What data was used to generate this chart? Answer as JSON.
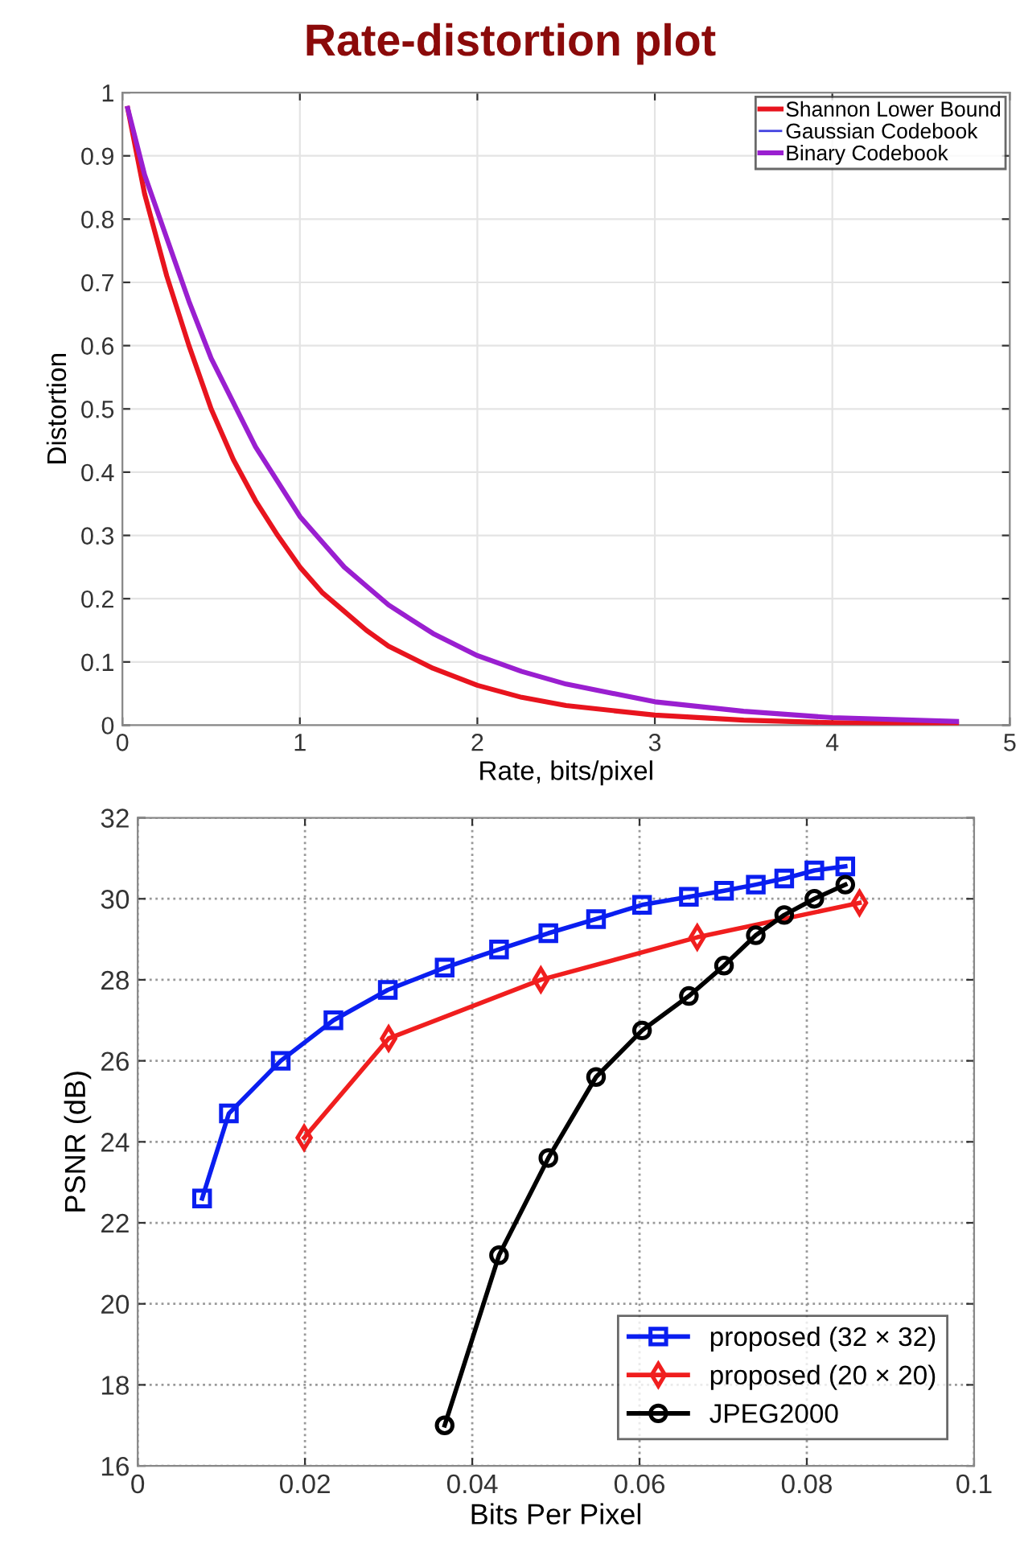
{
  "chart_data": [
    {
      "type": "line",
      "title": "Rate-distortion plot",
      "xlabel": "Rate, bits/pixel",
      "ylabel": "Distortion",
      "xlim": [
        0,
        5
      ],
      "xticks": [
        0,
        1,
        2,
        3,
        4,
        5
      ],
      "ylim": [
        0,
        1
      ],
      "yticks": [
        0,
        0.1,
        0.2,
        0.3,
        0.4,
        0.5,
        0.6,
        0.7,
        0.8,
        0.9,
        1
      ],
      "grid": true,
      "legend": "top right",
      "marker": "none",
      "line_style": "solid",
      "series": [
        {
          "name": "Shannon Lower Bound",
          "color": "#e8141e",
          "x": [
            0.03,
            0.125,
            0.25,
            0.375,
            0.5,
            0.625,
            0.75,
            0.875,
            1,
            1.125,
            1.25,
            1.375,
            1.5,
            1.75,
            2,
            2.25,
            2.5,
            3,
            3.5,
            4,
            4.7
          ],
          "values": [
            0.975,
            0.84,
            0.71,
            0.6,
            0.5,
            0.42,
            0.355,
            0.3,
            0.25,
            0.21,
            0.18,
            0.15,
            0.125,
            0.09,
            0.063,
            0.044,
            0.031,
            0.016,
            0.008,
            0.004,
            0.002
          ]
        },
        {
          "name": "Gaussian Codebook",
          "color": "#4040e0"
        },
        {
          "name": "Binary Codebook",
          "color": "#9a1fd0",
          "x": [
            0.03,
            0.125,
            0.25,
            0.375,
            0.5,
            0.625,
            0.75,
            0.875,
            1,
            1.125,
            1.25,
            1.375,
            1.5,
            1.75,
            2,
            2.25,
            2.5,
            3,
            3.5,
            4,
            4.7
          ],
          "values": [
            0.975,
            0.87,
            0.77,
            0.67,
            0.58,
            0.51,
            0.44,
            0.385,
            0.33,
            0.29,
            0.25,
            0.22,
            0.19,
            0.145,
            0.11,
            0.085,
            0.065,
            0.037,
            0.022,
            0.012,
            0.006
          ]
        }
      ]
    },
    {
      "type": "line",
      "xlabel": "Bits Per Pixel",
      "ylabel": "PSNR (dB)",
      "xlim": [
        0,
        0.1
      ],
      "xticks": [
        0,
        0.02,
        0.04,
        0.06,
        0.08,
        0.1
      ],
      "ylim": [
        16,
        32
      ],
      "yticks": [
        16,
        18,
        20,
        22,
        24,
        26,
        28,
        30,
        32
      ],
      "grid": true,
      "legend": "bottom right",
      "line_style": "solid",
      "series": [
        {
          "name": "proposed (32 × 32)",
          "color": "#0a1ef0",
          "marker": "square",
          "x": [
            0.0077,
            0.0109,
            0.0171,
            0.0234,
            0.0299,
            0.0367,
            0.0432,
            0.0491,
            0.0548,
            0.0603,
            0.0659,
            0.0701,
            0.0739,
            0.0773,
            0.0809,
            0.0846
          ],
          "values": [
            22.6,
            24.7,
            26.0,
            27.0,
            27.75,
            28.3,
            28.75,
            29.15,
            29.5,
            29.85,
            30.05,
            30.2,
            30.35,
            30.5,
            30.7,
            30.8
          ]
        },
        {
          "name": "proposed (20 × 20)",
          "color": "#f01e1e",
          "marker": "diamond",
          "x": [
            0.0199,
            0.03,
            0.0482,
            0.0669,
            0.0863
          ],
          "values": [
            24.1,
            26.55,
            28.0,
            29.05,
            29.9
          ]
        },
        {
          "name": "JPEG2000",
          "color": "#000000",
          "marker": "circle",
          "x": [
            0.0367,
            0.0432,
            0.0491,
            0.0548,
            0.0603,
            0.0659,
            0.0701,
            0.0739,
            0.0773,
            0.0809,
            0.0846
          ],
          "values": [
            17.0,
            21.2,
            23.6,
            25.6,
            26.75,
            27.6,
            28.35,
            29.1,
            29.6,
            30.0,
            30.35
          ]
        }
      ]
    }
  ]
}
